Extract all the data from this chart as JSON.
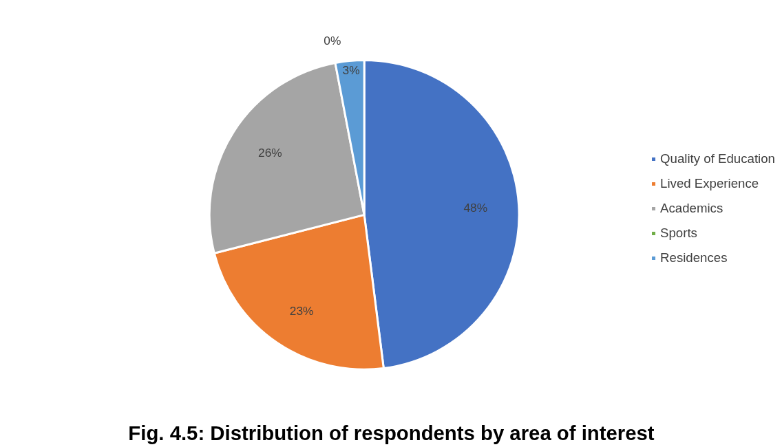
{
  "chart_data": {
    "type": "pie",
    "title": "Fig. 4.5: Distribution of respondents by area of interest",
    "categories": [
      "Quality of Education",
      "Lived Experience",
      "Academics",
      "Sports",
      "Residences"
    ],
    "values": [
      48,
      23,
      26,
      0,
      3
    ],
    "value_labels": [
      "48%",
      "23%",
      "26%",
      "0%",
      "3%"
    ],
    "colors": [
      "#4472c4",
      "#ed7d31",
      "#a5a5a5",
      "#70ad47",
      "#5b9bd5"
    ],
    "legend": "right"
  }
}
